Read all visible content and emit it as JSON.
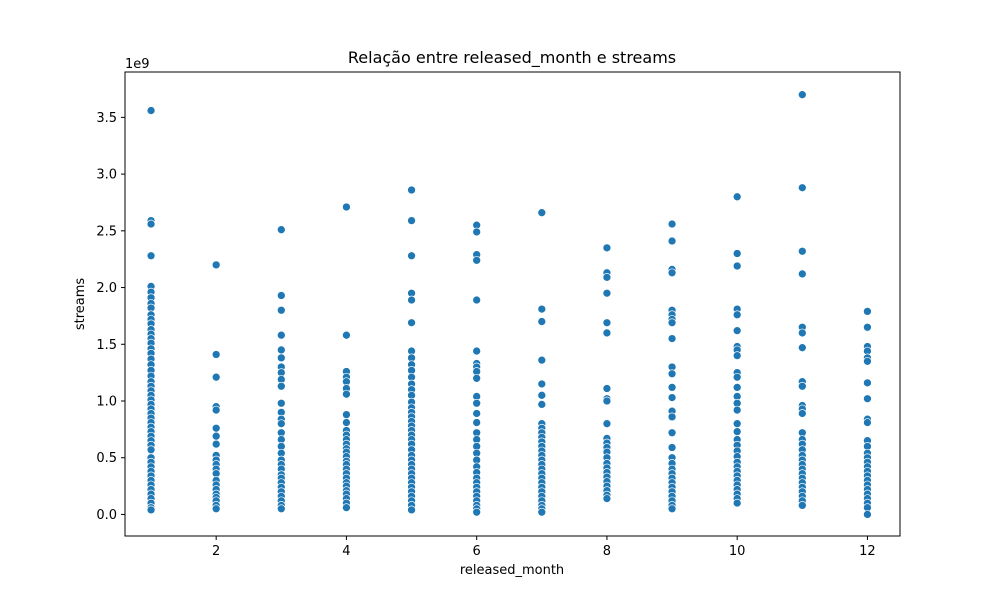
{
  "chart_data": {
    "type": "scatter",
    "title": "Relação entre released_month e streams",
    "xlabel": "released_month",
    "ylabel": "streams",
    "y_exponent_label": "1e9",
    "xlim": [
      0.6,
      12.5
    ],
    "ylim": [
      -0.19,
      3.9
    ],
    "xticks": [
      2,
      4,
      6,
      8,
      10,
      12
    ],
    "xtick_labels": [
      "2",
      "4",
      "6",
      "8",
      "10",
      "12"
    ],
    "yticks": [
      0,
      0.5,
      1.0,
      1.5,
      2.0,
      2.5,
      3.0,
      3.5
    ],
    "ytick_labels": [
      "0.0",
      "0.5",
      "1.0",
      "1.5",
      "2.0",
      "2.5",
      "3.0",
      "3.5"
    ],
    "point_color": "#1f77b4",
    "grid": false,
    "legend": "none",
    "series": [
      {
        "x": 1,
        "y": [
          3.56,
          2.59,
          2.56,
          2.28,
          2.01,
          1.96,
          1.91,
          1.86,
          1.82,
          1.76,
          1.72,
          1.68,
          1.63,
          1.59,
          1.55,
          1.51,
          1.46,
          1.42,
          1.37,
          1.32,
          1.27,
          1.22,
          1.17,
          1.13,
          1.09,
          1.05,
          1.01,
          0.97,
          0.93,
          0.89,
          0.85,
          0.81,
          0.77,
          0.73,
          0.69,
          0.65,
          0.61,
          0.57,
          0.5,
          0.46,
          0.42,
          0.38,
          0.34,
          0.3,
          0.26,
          0.22,
          0.18,
          0.14,
          0.1,
          0.06,
          0.04
        ]
      },
      {
        "x": 2,
        "y": [
          2.2,
          1.41,
          1.21,
          0.95,
          0.92,
          0.76,
          0.69,
          0.62,
          0.52,
          0.48,
          0.44,
          0.4,
          0.36,
          0.3,
          0.26,
          0.22,
          0.18,
          0.15,
          0.12,
          0.08,
          0.05
        ]
      },
      {
        "x": 3,
        "y": [
          2.51,
          1.93,
          1.8,
          1.58,
          1.45,
          1.38,
          1.3,
          1.25,
          1.19,
          1.13,
          0.98,
          0.9,
          0.84,
          0.8,
          0.72,
          0.66,
          0.6,
          0.54,
          0.48,
          0.44,
          0.4,
          0.35,
          0.32,
          0.28,
          0.24,
          0.2,
          0.16,
          0.12,
          0.08,
          0.05
        ]
      },
      {
        "x": 4,
        "y": [
          2.71,
          1.58,
          1.26,
          1.21,
          1.17,
          1.11,
          1.06,
          0.88,
          0.81,
          0.74,
          0.7,
          0.66,
          0.62,
          0.58,
          0.55,
          0.51,
          0.47,
          0.44,
          0.4,
          0.36,
          0.32,
          0.28,
          0.25,
          0.21,
          0.18,
          0.14,
          0.1,
          0.06
        ]
      },
      {
        "x": 5,
        "y": [
          2.86,
          2.59,
          2.28,
          1.95,
          1.89,
          1.69,
          1.44,
          1.38,
          1.32,
          1.27,
          1.21,
          1.15,
          1.1,
          1.05,
          0.99,
          0.94,
          0.9,
          0.86,
          0.82,
          0.78,
          0.74,
          0.7,
          0.66,
          0.62,
          0.57,
          0.52,
          0.48,
          0.44,
          0.4,
          0.36,
          0.32,
          0.28,
          0.24,
          0.2,
          0.16,
          0.12,
          0.08,
          0.04
        ]
      },
      {
        "x": 6,
        "y": [
          2.55,
          2.49,
          2.29,
          2.24,
          1.89,
          1.44,
          1.33,
          1.3,
          1.26,
          1.2,
          1.04,
          0.98,
          0.89,
          0.81,
          0.72,
          0.66,
          0.6,
          0.54,
          0.48,
          0.42,
          0.37,
          0.32,
          0.28,
          0.24,
          0.2,
          0.16,
          0.12,
          0.08,
          0.05,
          0.02
        ]
      },
      {
        "x": 7,
        "y": [
          2.66,
          1.81,
          1.7,
          1.36,
          1.15,
          1.05,
          0.97,
          0.8,
          0.76,
          0.72,
          0.68,
          0.64,
          0.6,
          0.56,
          0.52,
          0.48,
          0.44,
          0.4,
          0.36,
          0.32,
          0.28,
          0.24,
          0.2,
          0.16,
          0.12,
          0.08,
          0.05,
          0.02
        ]
      },
      {
        "x": 8,
        "y": [
          2.35,
          2.13,
          2.09,
          1.95,
          1.69,
          1.6,
          1.11,
          1.02,
          1.0,
          0.8,
          0.67,
          0.63,
          0.59,
          0.55,
          0.5,
          0.45,
          0.41,
          0.37,
          0.33,
          0.29,
          0.25,
          0.21,
          0.17,
          0.14
        ]
      },
      {
        "x": 9,
        "y": [
          2.56,
          2.41,
          2.16,
          2.13,
          1.8,
          1.76,
          1.72,
          1.69,
          1.55,
          1.3,
          1.24,
          1.12,
          1.03,
          0.91,
          0.86,
          0.72,
          0.59,
          0.5,
          0.45,
          0.4,
          0.36,
          0.32,
          0.28,
          0.24,
          0.2,
          0.16,
          0.12,
          0.08,
          0.05
        ]
      },
      {
        "x": 10,
        "y": [
          2.8,
          2.3,
          2.19,
          1.81,
          1.76,
          1.62,
          1.48,
          1.45,
          1.4,
          1.25,
          1.21,
          1.12,
          1.04,
          0.98,
          0.92,
          0.8,
          0.73,
          0.66,
          0.61,
          0.56,
          0.51,
          0.46,
          0.42,
          0.38,
          0.34,
          0.3,
          0.26,
          0.22,
          0.18,
          0.14,
          0.1
        ]
      },
      {
        "x": 11,
        "y": [
          3.7,
          2.88,
          2.32,
          2.12,
          1.65,
          1.6,
          1.47,
          1.17,
          1.13,
          0.96,
          0.93,
          0.89,
          0.72,
          0.66,
          0.62,
          0.57,
          0.52,
          0.48,
          0.44,
          0.4,
          0.36,
          0.32,
          0.28,
          0.24,
          0.2,
          0.16,
          0.12,
          0.08
        ]
      },
      {
        "x": 12,
        "y": [
          1.79,
          1.65,
          1.48,
          1.44,
          1.38,
          1.35,
          1.16,
          1.02,
          0.84,
          0.81,
          0.65,
          0.6,
          0.54,
          0.5,
          0.46,
          0.42,
          0.38,
          0.34,
          0.3,
          0.26,
          0.22,
          0.18,
          0.14,
          0.1,
          0.06,
          0.0
        ]
      }
    ]
  }
}
